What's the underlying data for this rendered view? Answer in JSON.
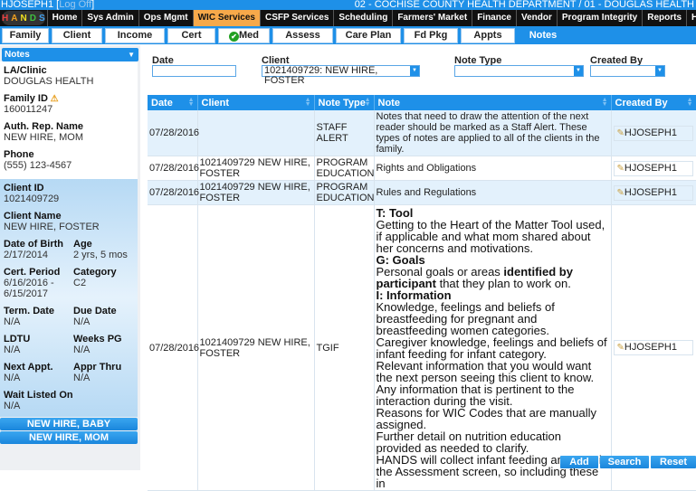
{
  "header": {
    "user": "HJOSEPH1",
    "logoff": "Log Off",
    "org": "02 - COCHISE COUNTY HEALTH DEPARTMENT / 01 - DOUGLAS HEALTH"
  },
  "logo": {
    "letters": [
      "H",
      "A",
      "N",
      "D",
      "S"
    ],
    "colors": [
      "#e84040",
      "#f0a020",
      "#f0e020",
      "#40c040",
      "#40a0f0"
    ]
  },
  "nav": [
    "Home",
    "Sys Admin",
    "Ops Mgmt",
    "WIC Services",
    "CSFP Services",
    "Scheduling",
    "Farmers' Market",
    "Finance",
    "Vendor",
    "Program Integrity",
    "Reports",
    "Help"
  ],
  "nav_active": "WIC Services",
  "tabs": [
    "Family",
    "Client",
    "Income",
    "Cert",
    "Med",
    "Assess",
    "Care Plan",
    "Fd Pkg",
    "Appts",
    "Notes"
  ],
  "tab_active": "Notes",
  "sidebar": {
    "title": "Notes",
    "family": [
      {
        "label": "LA/Clinic",
        "value": "DOUGLAS HEALTH"
      },
      {
        "label": "Family ID",
        "value": "160011247"
      },
      {
        "label": "Auth. Rep. Name",
        "value": "NEW HIRE, MOM"
      },
      {
        "label": "Phone",
        "value": "(555) 123-4567"
      }
    ],
    "client": {
      "client_id_label": "Client ID",
      "client_id": "1021409729",
      "client_name_label": "Client Name",
      "client_name": "NEW HIRE, FOSTER",
      "pairs": [
        [
          "Date of Birth",
          "2/17/2014",
          "Age",
          "2 yrs, 5 mos"
        ],
        [
          "Cert. Period",
          "6/16/2016 - 6/15/2017",
          "Category",
          "C2"
        ],
        [
          "Term. Date",
          "N/A",
          "Due Date",
          "N/A"
        ],
        [
          "LDTU",
          "N/A",
          "Weeks PG",
          "N/A"
        ],
        [
          "Next Appt.",
          "N/A",
          "Appr Thru",
          "N/A"
        ]
      ],
      "wait_label": "Wait Listed On",
      "wait": "N/A"
    },
    "family_members": [
      "NEW HIRE, BABY",
      "NEW HIRE, MOM"
    ]
  },
  "filters": {
    "date_label": "Date",
    "date": "",
    "client_label": "Client",
    "client": "1021409729: NEW HIRE, FOSTER",
    "note_type_label": "Note Type",
    "note_type": "",
    "created_by_label": "Created By",
    "created_by": ""
  },
  "table": {
    "headers": [
      "Date",
      "Client",
      "Note Type",
      "Note",
      "Created By"
    ],
    "rows": [
      {
        "date": "07/28/2016",
        "client": "",
        "type": "STAFF ALERT",
        "note": "Notes that need to draw the attention of the next reader should be marked as a Staff Alert. These types of notes are applied to all of the clients in the family.",
        "by": "HJOSEPH1"
      },
      {
        "date": "07/28/2016",
        "client": "1021409729 NEW HIRE, FOSTER",
        "type": "PROGRAM EDUCATION",
        "note": "Rights and Obligations",
        "by": "HJOSEPH1"
      },
      {
        "date": "07/28/2016",
        "client": "1021409729 NEW HIRE, FOSTER",
        "type": "PROGRAM EDUCATION",
        "note": "Rules and Regulations",
        "by": "HJOSEPH1"
      },
      {
        "date": "07/28/2016",
        "client": "1021409729 NEW HIRE, FOSTER",
        "type": "TGIF",
        "by": "HJOSEPH1",
        "note_lines": [
          [
            {
              "t": "T: Tool",
              "b": true
            }
          ],
          [
            {
              "t": "Getting to the Heart of the Matter Tool used, if applicable and what mom shared about her concerns and motivations."
            }
          ],
          [
            {
              "t": "G: Goals",
              "b": true
            }
          ],
          [
            {
              "t": "Personal goals or areas "
            },
            {
              "t": "identified by participant",
              "b": true
            },
            {
              "t": " that they plan to work on."
            }
          ],
          [
            {
              "t": "I: Information",
              "b": true
            }
          ],
          [
            {
              "t": "Knowledge, feelings and beliefs of breastfeeding for pregnant and breastfeeding women categories."
            }
          ],
          [
            {
              "t": "Caregiver knowledge, feelings and beliefs of infant feeding for infant category."
            }
          ],
          [
            {
              "t": "Relevant information that you would want the next person seeing this client to know."
            }
          ],
          [
            {
              "t": "Any information that is pertinent to the interaction during the visit."
            }
          ],
          [
            {
              "t": "Reasons for WIC Codes that are manually assigned."
            }
          ],
          [
            {
              "t": "Further detail on nutrition education provided as needed to clarify."
            }
          ],
          [
            {
              "t": "HANDS will collect infant feeding amounts in the Assessment screen, so including these in"
            }
          ]
        ]
      }
    ]
  },
  "buttons": {
    "add": "Add",
    "search": "Search",
    "reset": "Reset"
  }
}
